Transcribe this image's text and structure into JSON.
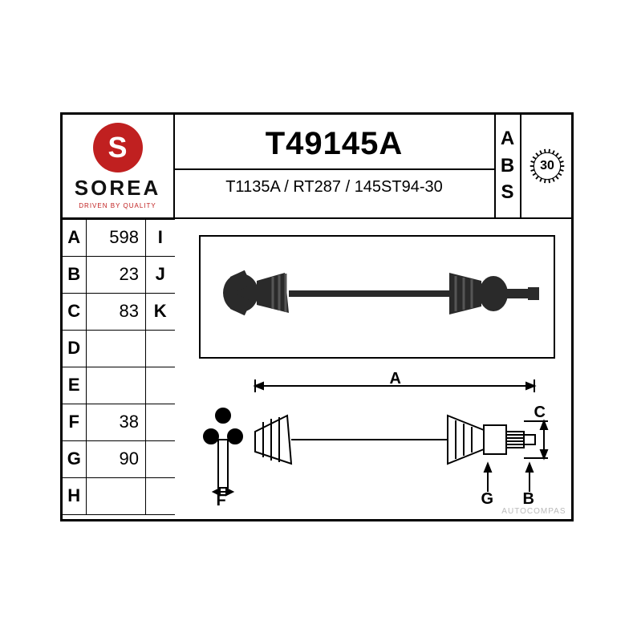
{
  "brand": {
    "glyph": "S",
    "name": "SOREA",
    "tagline": "DRIVEN BY QUALITY",
    "logo_bg": "#c02020",
    "logo_fg": "#ffffff"
  },
  "title": {
    "part_number": "T49145A",
    "references": "T1135A / RT287 / 145ST94-30"
  },
  "abs": {
    "label_chars": [
      "A",
      "B",
      "S"
    ],
    "teeth": "30"
  },
  "specs": [
    {
      "label": "A",
      "value": "598",
      "label2": "I"
    },
    {
      "label": "B",
      "value": "23",
      "label2": "J"
    },
    {
      "label": "C",
      "value": "83",
      "label2": "K"
    },
    {
      "label": "D",
      "value": "",
      "label2": ""
    },
    {
      "label": "E",
      "value": "",
      "label2": ""
    },
    {
      "label": "F",
      "value": "38",
      "label2": ""
    },
    {
      "label": "G",
      "value": "90",
      "label2": ""
    },
    {
      "label": "H",
      "value": "",
      "label2": ""
    }
  ],
  "schematic_labels": {
    "A": "A",
    "B": "B",
    "C": "C",
    "F": "F",
    "G": "G"
  },
  "styling": {
    "border_color": "#000000",
    "background": "#ffffff",
    "title_fontsize": 40,
    "refs_fontsize": 20,
    "spec_fontsize": 22,
    "watermark_text": "AUTOCOMPAS",
    "watermark_color": "#bbbbbb"
  }
}
